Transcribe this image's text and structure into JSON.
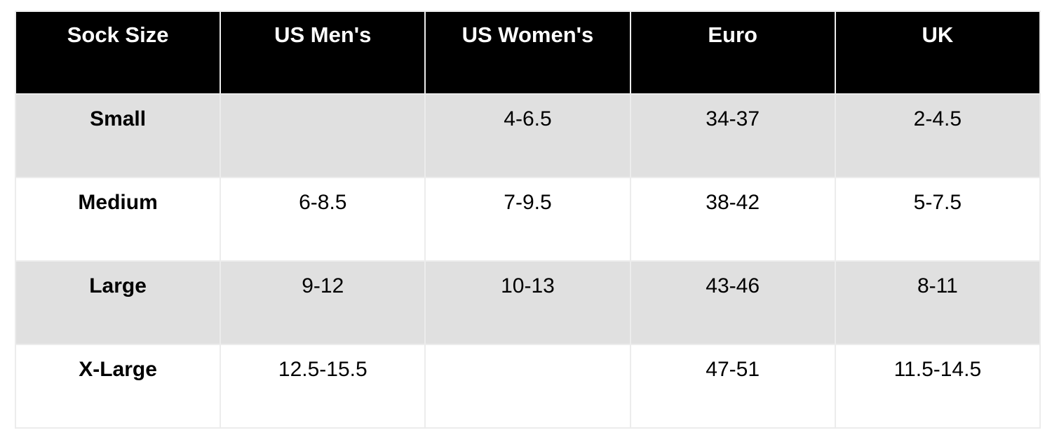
{
  "chart_data": {
    "type": "table",
    "columns": [
      "Sock Size",
      "US Men's",
      "US Women's",
      "Euro",
      "UK"
    ],
    "rows": [
      [
        "Small",
        "",
        "4-6.5",
        "34-37",
        "2-4.5"
      ],
      [
        "Medium",
        "6-8.5",
        "7-9.5",
        "38-42",
        "5-7.5"
      ],
      [
        "Large",
        "9-12",
        "10-13",
        "43-46",
        "8-11"
      ],
      [
        "X-Large",
        "12.5-15.5",
        "",
        "47-51",
        "11.5-14.5"
      ]
    ]
  },
  "colors": {
    "header_bg": "#000000",
    "header_text": "#ffffff",
    "row_alt_bg": "#e0e0e0",
    "row_bg": "#ffffff",
    "cell_border": "#ececec",
    "outer_border": "#d9d9d9",
    "body_text": "#000000"
  }
}
